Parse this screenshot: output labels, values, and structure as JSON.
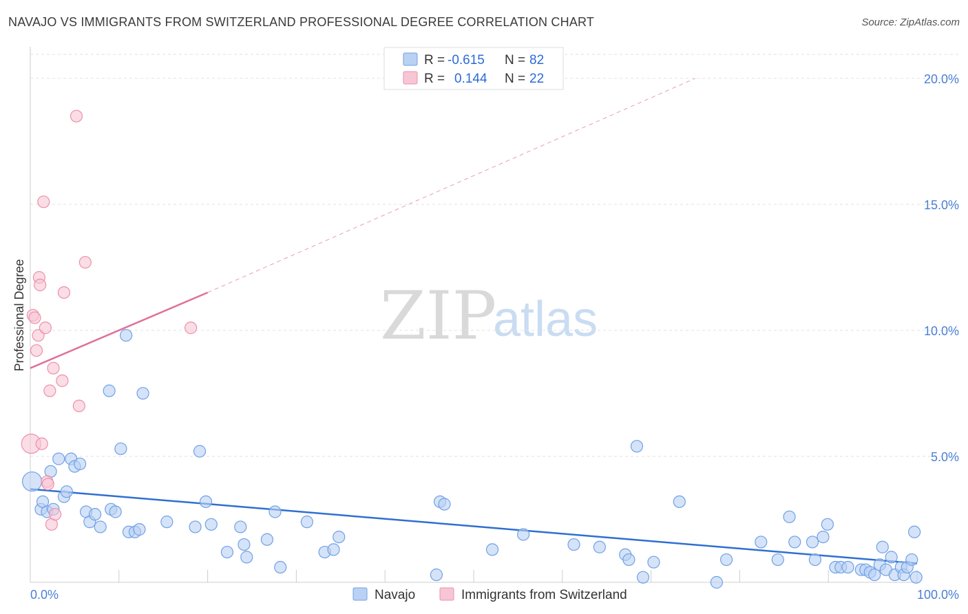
{
  "title": "NAVAJO VS IMMIGRANTS FROM SWITZERLAND PROFESSIONAL DEGREE CORRELATION CHART",
  "source": "Source: ZipAtlas.com",
  "watermark": {
    "zip": "ZIP",
    "atlas": "atlas"
  },
  "colors": {
    "navajo": "#6fa0e6",
    "navajo_fill": "#b9d1f3",
    "swiss": "#ee8fab",
    "swiss_fill": "#f7c6d4",
    "navajo_line": "#2f6fd0",
    "swiss_line": "#e0709a",
    "tick_label": "#4a7fd4"
  },
  "legend": {
    "navajo": {
      "r_label": "R =",
      "r_value": "-0.615",
      "n_label": "N =",
      "n_value": "82"
    },
    "swiss": {
      "r_label": "R =",
      "r_value": "0.144",
      "n_label": "N =",
      "n_value": "22"
    }
  },
  "chart_data": {
    "type": "scatter",
    "title": "NAVAJO VS IMMIGRANTS FROM SWITZERLAND PROFESSIONAL DEGREE CORRELATION CHART",
    "xlabel": "",
    "ylabel": "Professional Degree",
    "xlim": [
      0,
      100
    ],
    "ylim": [
      0,
      20
    ],
    "x_tick_labels": [
      "0.0%",
      "100.0%"
    ],
    "y_ticks": [
      5,
      10,
      15,
      20
    ],
    "y_tick_labels": [
      "5.0%",
      "10.0%",
      "15.0%",
      "20.0%"
    ],
    "grid": true,
    "legend_position": "top-center",
    "series": [
      {
        "name": "Navajo",
        "points": [
          [
            0.2,
            4.0
          ],
          [
            1.2,
            2.9
          ],
          [
            1.4,
            3.2
          ],
          [
            1.9,
            2.8
          ],
          [
            2.3,
            4.4
          ],
          [
            2.6,
            2.9
          ],
          [
            3.2,
            4.9
          ],
          [
            3.8,
            3.4
          ],
          [
            4.1,
            3.6
          ],
          [
            4.6,
            4.9
          ],
          [
            5.0,
            4.6
          ],
          [
            5.6,
            4.7
          ],
          [
            6.3,
            2.8
          ],
          [
            6.7,
            2.4
          ],
          [
            7.3,
            2.7
          ],
          [
            7.9,
            2.2
          ],
          [
            8.9,
            7.6
          ],
          [
            9.1,
            2.9
          ],
          [
            9.6,
            2.8
          ],
          [
            10.2,
            5.3
          ],
          [
            10.8,
            9.8
          ],
          [
            11.1,
            2.0
          ],
          [
            11.8,
            2.0
          ],
          [
            12.3,
            2.1
          ],
          [
            12.7,
            7.5
          ],
          [
            15.4,
            2.4
          ],
          [
            18.6,
            2.2
          ],
          [
            19.1,
            5.2
          ],
          [
            19.8,
            3.2
          ],
          [
            20.4,
            2.3
          ],
          [
            22.2,
            1.2
          ],
          [
            23.7,
            2.2
          ],
          [
            24.1,
            1.5
          ],
          [
            24.4,
            1.0
          ],
          [
            26.7,
            1.7
          ],
          [
            27.6,
            2.8
          ],
          [
            28.2,
            0.6
          ],
          [
            31.2,
            2.4
          ],
          [
            33.2,
            1.2
          ],
          [
            34.2,
            1.3
          ],
          [
            34.8,
            1.8
          ],
          [
            45.8,
            0.3
          ],
          [
            46.2,
            3.2
          ],
          [
            46.7,
            3.1
          ],
          [
            52.1,
            1.3
          ],
          [
            55.6,
            1.9
          ],
          [
            61.3,
            1.5
          ],
          [
            64.2,
            1.4
          ],
          [
            67.1,
            1.1
          ],
          [
            67.5,
            0.9
          ],
          [
            68.4,
            5.4
          ],
          [
            69.1,
            0.2
          ],
          [
            70.3,
            0.8
          ],
          [
            73.2,
            3.2
          ],
          [
            77.4,
            0.0
          ],
          [
            78.5,
            0.9
          ],
          [
            82.4,
            1.6
          ],
          [
            84.3,
            0.9
          ],
          [
            85.6,
            2.6
          ],
          [
            86.2,
            1.6
          ],
          [
            88.2,
            1.6
          ],
          [
            88.5,
            0.9
          ],
          [
            89.4,
            1.8
          ],
          [
            89.9,
            2.3
          ],
          [
            90.8,
            0.6
          ],
          [
            91.4,
            0.6
          ],
          [
            92.2,
            0.6
          ],
          [
            93.7,
            0.5
          ],
          [
            94.2,
            0.5
          ],
          [
            94.7,
            0.4
          ],
          [
            95.2,
            0.3
          ],
          [
            95.8,
            0.7
          ],
          [
            96.1,
            1.4
          ],
          [
            96.5,
            0.5
          ],
          [
            97.1,
            1.0
          ],
          [
            97.5,
            0.3
          ],
          [
            98.2,
            0.6
          ],
          [
            98.5,
            0.3
          ],
          [
            98.9,
            0.6
          ],
          [
            99.4,
            0.9
          ],
          [
            99.7,
            2.0
          ],
          [
            99.9,
            0.2
          ]
        ]
      },
      {
        "name": "Immigrants from Switzerland",
        "points": [
          [
            0.1,
            5.5
          ],
          [
            0.3,
            10.6
          ],
          [
            0.5,
            10.5
          ],
          [
            0.7,
            9.2
          ],
          [
            0.9,
            9.8
          ],
          [
            1.0,
            12.1
          ],
          [
            1.1,
            11.8
          ],
          [
            1.3,
            5.5
          ],
          [
            1.5,
            15.1
          ],
          [
            1.7,
            10.1
          ],
          [
            1.9,
            4.0
          ],
          [
            2.0,
            3.9
          ],
          [
            2.2,
            7.6
          ],
          [
            2.4,
            2.3
          ],
          [
            2.6,
            8.5
          ],
          [
            2.8,
            2.7
          ],
          [
            3.6,
            8.0
          ],
          [
            3.8,
            11.5
          ],
          [
            5.2,
            18.5
          ],
          [
            5.5,
            7.0
          ],
          [
            6.2,
            12.7
          ],
          [
            18.1,
            10.1
          ]
        ]
      }
    ],
    "trend_lines": [
      {
        "series": "Navajo",
        "from": [
          0,
          3.7
        ],
        "to": [
          100,
          0.75
        ]
      },
      {
        "series": "Immigrants from Switzerland",
        "from": [
          0,
          8.5
        ],
        "to": [
          20,
          11.5
        ],
        "dashed_extension_to": [
          75,
          20
        ]
      }
    ]
  },
  "bottom_legend": [
    "Navajo",
    "Immigrants from Switzerland"
  ]
}
